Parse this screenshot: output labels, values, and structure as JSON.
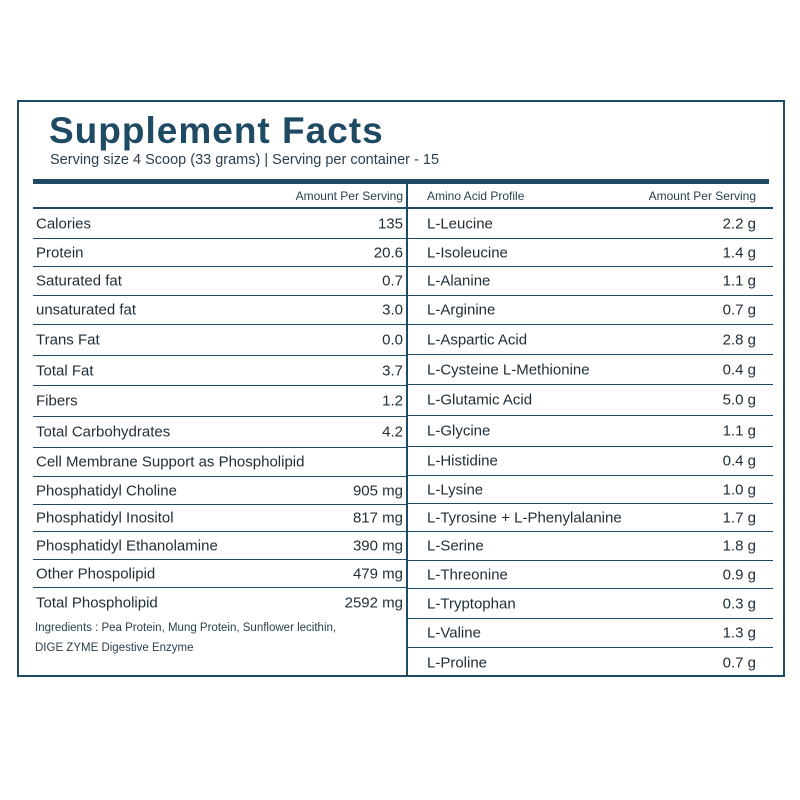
{
  "title": "Supplement Facts",
  "subtitle": "Serving size 4 Scoop (33 grams) | Serving per container - 15",
  "left_header": "Amount Per Serving",
  "right_header_label": "Amino Acid Profile",
  "right_header_amount": "Amount Per Serving",
  "left_rows": [
    {
      "label": "Calories",
      "value": "135"
    },
    {
      "label": "Protein",
      "value": "20.6"
    },
    {
      "label": "Saturated fat",
      "value": "0.7"
    },
    {
      "label": "unsaturated fat",
      "value": "3.0"
    },
    {
      "label": "Trans Fat",
      "value": "0.0"
    },
    {
      "label": "Total Fat",
      "value": "3.7"
    },
    {
      "label": "Fibers",
      "value": "1.2"
    },
    {
      "label": "Total Carbohydrates",
      "value": "4.2"
    },
    {
      "label": "Cell Membrane Support as Phospholipid",
      "value": ""
    },
    {
      "label": "Phosphatidyl Choline",
      "value": "905 mg"
    },
    {
      "label": "Phosphatidyl Inositol",
      "value": "817 mg"
    },
    {
      "label": "Phosphatidyl Ethanolamine",
      "value": "390 mg"
    },
    {
      "label": "Other Phospolipid",
      "value": "479 mg"
    },
    {
      "label": "Total Phospholipid",
      "value": "2592 mg"
    }
  ],
  "ingredients_line1": "Ingredients : Pea Protein, Mung Protein, Sunflower lecithin,",
  "ingredients_line2": "DIGE ZYME Digestive Enzyme",
  "right_rows": [
    {
      "label": "L-Leucine",
      "value": "2.2 g"
    },
    {
      "label": "L-Isoleucine",
      "value": "1.4 g"
    },
    {
      "label": "L-Alanine",
      "value": "1.1 g"
    },
    {
      "label": "L-Arginine",
      "value": "0.7 g"
    },
    {
      "label": "L-Aspartic Acid",
      "value": "2.8 g"
    },
    {
      "label": "L-Cysteine L-Methionine",
      "value": "0.4 g"
    },
    {
      "label": "L-Glutamic Acid",
      "value": "5.0 g"
    },
    {
      "label": "L-Glycine",
      "value": "1.1 g"
    },
    {
      "label": "L-Histidine",
      "value": "0.4 g"
    },
    {
      "label": "L-Lysine",
      "value": "1.0 g"
    },
    {
      "label": "L-Tyrosine + L-Phenylalanine",
      "value": "1.7 g"
    },
    {
      "label": "L-Serine",
      "value": "1.8 g"
    },
    {
      "label": "L-Threonine",
      "value": "0.9 g"
    },
    {
      "label": "L-Tryptophan",
      "value": "0.3 g"
    },
    {
      "label": "L-Valine",
      "value": "1.3 g"
    },
    {
      "label": "L-Proline",
      "value": "0.7 g"
    }
  ],
  "colors": {
    "accent": "#1f4a63",
    "text": "#1f2d38"
  }
}
